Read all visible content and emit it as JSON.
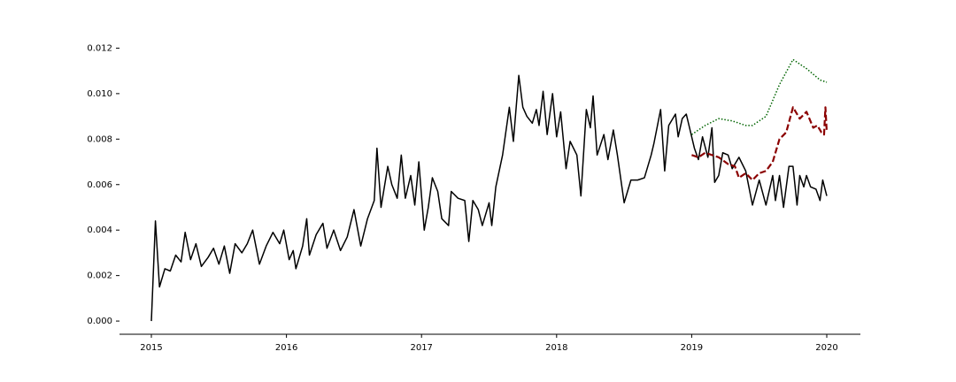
{
  "chart_data": {
    "type": "line",
    "xlim": [
      2014.764,
      2020.249
    ],
    "ylim": [
      -0.00058,
      0.0126
    ],
    "xticks": [
      2015,
      2016,
      2017,
      2018,
      2019,
      2020
    ],
    "yticks": [
      {
        "value": 0,
        "label": "0.000"
      },
      {
        "value": 0.002,
        "label": "0.002"
      },
      {
        "value": 0.004,
        "label": "0.004"
      },
      {
        "value": 0.006,
        "label": "0.006"
      },
      {
        "value": 0.008,
        "label": "0.008"
      },
      {
        "value": 0.01,
        "label": "0.010"
      },
      {
        "value": 0.012,
        "label": "0.012"
      }
    ],
    "series": [
      {
        "color": "#000000",
        "linestyle": "solid",
        "x": [
          2015.0,
          2015.03,
          2015.06,
          2015.1,
          2015.14,
          2015.18,
          2015.22,
          2015.25,
          2015.29,
          2015.33,
          2015.37,
          2015.42,
          2015.46,
          2015.5,
          2015.54,
          2015.58,
          2015.62,
          2015.67,
          2015.71,
          2015.75,
          2015.8,
          2015.85,
          2015.9,
          2015.95,
          2015.98,
          2016.02,
          2016.05,
          2016.07,
          2016.12,
          2016.15,
          2016.17,
          2016.22,
          2016.27,
          2016.3,
          2016.35,
          2016.4,
          2016.45,
          2016.5,
          2016.55,
          2016.6,
          2016.65,
          2016.67,
          2016.7,
          2016.75,
          2016.78,
          2016.82,
          2016.85,
          2016.88,
          2016.92,
          2016.95,
          2016.98,
          2017.02,
          2017.05,
          2017.08,
          2017.12,
          2017.15,
          2017.2,
          2017.22,
          2017.27,
          2017.32,
          2017.35,
          2017.38,
          2017.42,
          2017.45,
          2017.5,
          2017.52,
          2017.55,
          2017.6,
          2017.65,
          2017.68,
          2017.72,
          2017.75,
          2017.78,
          2017.82,
          2017.85,
          2017.87,
          2017.9,
          2017.93,
          2017.97,
          2018.0,
          2018.03,
          2018.07,
          2018.1,
          2018.15,
          2018.18,
          2018.22,
          2018.25,
          2018.27,
          2018.3,
          2018.35,
          2018.38,
          2018.42,
          2018.45,
          2018.5,
          2018.55,
          2018.6,
          2018.65,
          2018.7,
          2018.72,
          2018.77,
          2018.8,
          2018.83,
          2018.88,
          2018.9,
          2018.93,
          2018.96,
          2018.98,
          2019.02,
          2019.05,
          2019.08,
          2019.12,
          2019.15,
          2019.17,
          2019.2,
          2019.23,
          2019.27,
          2019.3,
          2019.35,
          2019.4,
          2019.45,
          2019.5,
          2019.55,
          2019.6,
          2019.62,
          2019.65,
          2019.68,
          2019.72,
          2019.75,
          2019.78,
          2019.8,
          2019.83,
          2019.85,
          2019.88,
          2019.92,
          2019.95,
          2019.97,
          2020.0
        ],
        "values": [
          0.0,
          0.0044,
          0.0015,
          0.0023,
          0.0022,
          0.0029,
          0.0026,
          0.0039,
          0.0027,
          0.0034,
          0.0024,
          0.0028,
          0.0032,
          0.0025,
          0.0033,
          0.0021,
          0.0034,
          0.003,
          0.0034,
          0.004,
          0.0025,
          0.0033,
          0.0039,
          0.0034,
          0.004,
          0.0027,
          0.0031,
          0.0023,
          0.0033,
          0.0045,
          0.0029,
          0.0038,
          0.0043,
          0.0032,
          0.004,
          0.0031,
          0.0037,
          0.0049,
          0.0033,
          0.0045,
          0.0053,
          0.0076,
          0.005,
          0.0068,
          0.006,
          0.0054,
          0.0073,
          0.0054,
          0.0064,
          0.0051,
          0.007,
          0.004,
          0.005,
          0.0063,
          0.0057,
          0.0045,
          0.0042,
          0.0057,
          0.0054,
          0.0053,
          0.0035,
          0.0053,
          0.0049,
          0.0042,
          0.0052,
          0.0042,
          0.0059,
          0.0073,
          0.0094,
          0.0079,
          0.0108,
          0.0094,
          0.009,
          0.0087,
          0.0093,
          0.0086,
          0.0101,
          0.0082,
          0.01,
          0.0081,
          0.0092,
          0.0067,
          0.0079,
          0.0073,
          0.0055,
          0.0093,
          0.0085,
          0.0099,
          0.0073,
          0.0082,
          0.0071,
          0.0084,
          0.0073,
          0.0052,
          0.0062,
          0.0062,
          0.0063,
          0.0073,
          0.0078,
          0.0093,
          0.0066,
          0.0086,
          0.0091,
          0.0081,
          0.0089,
          0.0091,
          0.0086,
          0.0076,
          0.0071,
          0.0081,
          0.0072,
          0.0085,
          0.0061,
          0.0064,
          0.0074,
          0.0073,
          0.0067,
          0.0072,
          0.0066,
          0.0051,
          0.0062,
          0.0051,
          0.0064,
          0.0053,
          0.0064,
          0.005,
          0.0068,
          0.0068,
          0.0051,
          0.0064,
          0.0059,
          0.0064,
          0.0059,
          0.0058,
          0.0053,
          0.0062,
          0.0055
        ]
      },
      {
        "color": "#8b0000",
        "linestyle": "dashed",
        "x": [
          2019.0,
          2019.05,
          2019.1,
          2019.15,
          2019.2,
          2019.27,
          2019.32,
          2019.35,
          2019.4,
          2019.45,
          2019.5,
          2019.55,
          2019.6,
          2019.65,
          2019.7,
          2019.75,
          2019.8,
          2019.85,
          2019.9,
          2019.93,
          2019.96,
          2019.98,
          2019.99,
          2020.0
        ],
        "values": [
          0.0073,
          0.0072,
          0.0074,
          0.0073,
          0.0072,
          0.0069,
          0.0068,
          0.0063,
          0.0065,
          0.0062,
          0.0065,
          0.0066,
          0.007,
          0.008,
          0.0083,
          0.0094,
          0.0089,
          0.0092,
          0.0085,
          0.0086,
          0.0083,
          0.0082,
          0.0094,
          0.0083
        ]
      },
      {
        "color": "#006400",
        "linestyle": "dotted",
        "x": [
          2019.0,
          2019.1,
          2019.2,
          2019.3,
          2019.4,
          2019.45,
          2019.55,
          2019.65,
          2019.75,
          2019.85,
          2019.95,
          2020.0
        ],
        "values": [
          0.0082,
          0.0086,
          0.0089,
          0.0088,
          0.0086,
          0.0086,
          0.009,
          0.0104,
          0.0115,
          0.0111,
          0.0106,
          0.0105
        ]
      }
    ]
  }
}
